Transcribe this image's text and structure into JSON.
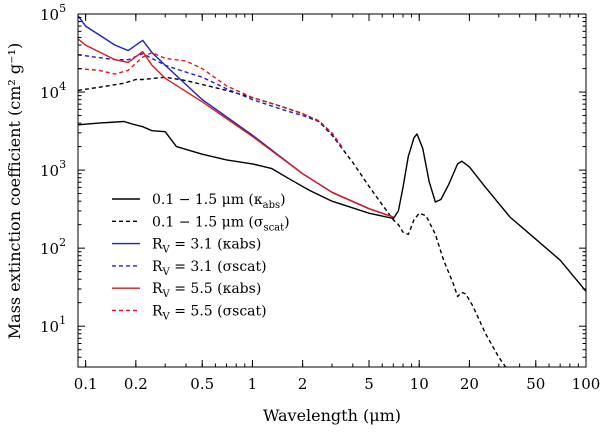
{
  "chart_data": {
    "type": "line",
    "title": "",
    "xlabel": "Wavelength (μm)",
    "ylabel": "Mass extinction coefficient (cm² g⁻¹)",
    "xscale": "log",
    "yscale": "log",
    "xlim": [
      0.09,
      100
    ],
    "ylim": [
      3,
      100000
    ],
    "xticks": [
      {
        "value": 0.1,
        "label": "0.1"
      },
      {
        "value": 0.2,
        "label": "0.2"
      },
      {
        "value": 0.5,
        "label": "0.5"
      },
      {
        "value": 1,
        "label": "1"
      },
      {
        "value": 2,
        "label": "2"
      },
      {
        "value": 5,
        "label": "5"
      },
      {
        "value": 10,
        "label": "10"
      },
      {
        "value": 20,
        "label": "20"
      },
      {
        "value": 50,
        "label": "50"
      },
      {
        "value": 100,
        "label": "100"
      }
    ],
    "yticks": [
      {
        "value": 10,
        "base": "10",
        "exp": "1"
      },
      {
        "value": 100,
        "base": "10",
        "exp": "2"
      },
      {
        "value": 1000,
        "base": "10",
        "exp": "3"
      },
      {
        "value": 10000,
        "base": "10",
        "exp": "4"
      },
      {
        "value": 100000,
        "base": "10",
        "exp": "5"
      }
    ],
    "legend_position": "lower-left",
    "series": [
      {
        "name": "0.1 – 1.5 μm (κabs)",
        "label_main": "0.1 − 1.5 μm (κ",
        "label_sub": "abs",
        "label_end": ")",
        "color": "#000000",
        "dashed": false,
        "x": [
          0.09,
          0.12,
          0.17,
          0.19,
          0.22,
          0.25,
          0.3,
          0.35,
          0.5,
          0.7,
          1.0,
          1.3,
          1.7,
          2.2,
          3.0,
          5.0,
          7.0,
          7.5,
          8.0,
          8.6,
          9.3,
          9.7,
          10.5,
          11.5,
          12.5,
          13.5,
          15.0,
          17.0,
          18.0,
          20.0,
          25.0,
          35.0,
          50.0,
          70.0,
          100.0
        ],
        "y": [
          3800,
          4000,
          4200,
          3900,
          3600,
          3200,
          3100,
          2000,
          1600,
          1350,
          1200,
          1050,
          750,
          550,
          400,
          280,
          240,
          300,
          600,
          1500,
          2600,
          2900,
          1900,
          700,
          390,
          420,
          650,
          1200,
          1300,
          1100,
          600,
          250,
          130,
          70,
          28
        ]
      },
      {
        "name": "0.1 – 1.5 μm (σscat)",
        "label_main": "0.1 − 1.5 μm (σ",
        "label_sub": "scat",
        "label_end": ")",
        "color": "#000000",
        "dashed": true,
        "x": [
          0.09,
          0.12,
          0.17,
          0.2,
          0.22,
          0.3,
          0.4,
          0.5,
          0.7,
          1.0,
          1.5,
          2.0,
          2.5,
          3.0,
          4.0,
          5.0,
          6.0,
          7.0,
          7.5,
          8.0,
          8.6,
          9.3,
          10.0,
          11.0,
          12.5,
          14.0,
          16.0,
          17.0,
          18.0,
          19.0,
          21.0,
          25.0,
          30.0,
          33.0
        ],
        "y": [
          10500,
          11500,
          13000,
          14500,
          14500,
          15500,
          14000,
          12500,
          10500,
          8500,
          6500,
          5300,
          4200,
          2800,
          1250,
          620,
          360,
          230,
          200,
          160,
          150,
          230,
          280,
          260,
          150,
          70,
          35,
          24,
          27,
          26,
          18,
          8,
          4,
          3
        ]
      },
      {
        "name": "RV = 3.1 (κabs)",
        "label_main": "R",
        "label_sub": "V",
        "label_end": " = 3.1 (κabs)",
        "color": "#1f1fd0",
        "dashed": false,
        "x": [
          0.09,
          0.1,
          0.15,
          0.18,
          0.22,
          0.25,
          0.3,
          0.5,
          1.0,
          2.0,
          3.0,
          5.0,
          7.0
        ],
        "y": [
          95000,
          70000,
          40000,
          34000,
          46000,
          32000,
          22000,
          8000,
          2800,
          900,
          520,
          320,
          250
        ]
      },
      {
        "name": "RV = 3.1 (σscat)",
        "label_main": "R",
        "label_sub": "V",
        "label_end": " = 3.1 (σscat)",
        "color": "#1f1fd0",
        "dashed": true,
        "x": [
          0.09,
          0.15,
          0.18,
          0.22,
          0.25,
          0.3,
          0.4,
          0.5,
          0.7,
          1.0,
          1.5,
          2.0,
          2.5,
          3.0,
          3.5
        ],
        "y": [
          30000,
          26000,
          26000,
          31000,
          27000,
          22000,
          18000,
          15500,
          11000,
          8000,
          6000,
          5000,
          4200,
          2900,
          1800
        ]
      },
      {
        "name": "RV = 5.5 (κabs)",
        "label_main": "R",
        "label_sub": "V",
        "label_end": " = 5.5 (κabs)",
        "color": "#e01818",
        "dashed": false,
        "x": [
          0.09,
          0.1,
          0.15,
          0.18,
          0.22,
          0.25,
          0.3,
          0.5,
          1.0,
          2.0,
          3.0,
          5.0,
          7.0
        ],
        "y": [
          48000,
          40000,
          26000,
          24000,
          33000,
          22000,
          15000,
          7500,
          2700,
          900,
          520,
          320,
          250
        ]
      },
      {
        "name": "RV = 5.5 (σscat)",
        "label_main": "R",
        "label_sub": "V",
        "label_end": " = 5.5 (σscat)",
        "color": "#e01818",
        "dashed": true,
        "x": [
          0.09,
          0.12,
          0.15,
          0.18,
          0.22,
          0.25,
          0.3,
          0.4,
          0.5,
          0.7,
          1.0,
          1.5,
          2.0,
          2.5,
          3.0,
          3.5
        ],
        "y": [
          20000,
          19000,
          17000,
          19000,
          28000,
          32000,
          27000,
          25000,
          20000,
          12000,
          8500,
          6500,
          5300,
          4300,
          3000,
          1900
        ]
      }
    ]
  }
}
